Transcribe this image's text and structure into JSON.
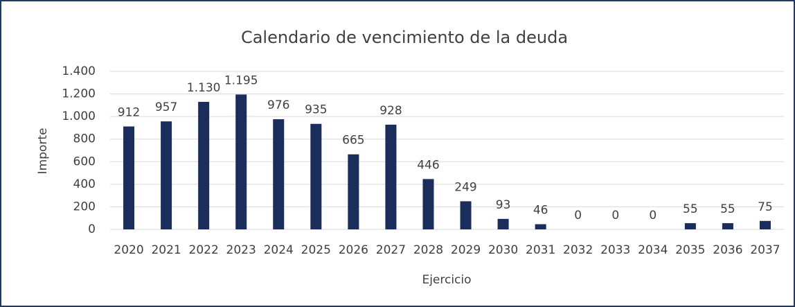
{
  "chart_data": {
    "type": "bar",
    "title": "Calendario de vencimiento de la deuda",
    "x_label": "Ejercicio",
    "y_label": "Importe",
    "categories": [
      "2020",
      "2021",
      "2022",
      "2023",
      "2024",
      "2025",
      "2026",
      "2027",
      "2028",
      "2029",
      "2030",
      "2031",
      "2032",
      "2033",
      "2034",
      "2035",
      "2036",
      "2037"
    ],
    "values": [
      912,
      957,
      1130,
      1195,
      976,
      935,
      665,
      928,
      446,
      249,
      93,
      46,
      0,
      0,
      0,
      55,
      55,
      75
    ],
    "value_labels": [
      "912",
      "957",
      "1.130",
      "1.195",
      "976",
      "935",
      "665",
      "928",
      "446",
      "249",
      "93",
      "46",
      "0",
      "0",
      "0",
      "55",
      "55",
      "75"
    ],
    "color": "#1b2d5a",
    "ylim": [
      0,
      1400
    ],
    "yticks": [
      0,
      200,
      400,
      600,
      800,
      {
        "value": 1000,
        "label": "1.000"
      },
      {
        "value": 1200,
        "label": "1.200"
      },
      {
        "value": 1400,
        "label": "1.400"
      }
    ],
    "grid": true
  }
}
